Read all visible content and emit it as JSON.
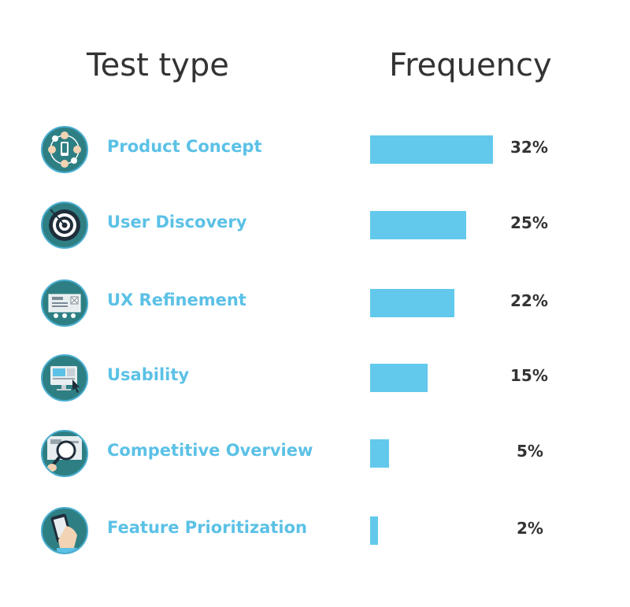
{
  "header": {
    "test_type": "Test type",
    "frequency": "Frequency"
  },
  "chart_data": {
    "type": "bar",
    "orientation": "horizontal",
    "categories": [
      "Product Concept",
      "User Discovery",
      "UX Refinement",
      "Usability",
      "Competitive Overview",
      "Feature Prioritization"
    ],
    "values": [
      32,
      25,
      22,
      15,
      5,
      2
    ],
    "value_labels": [
      "32%",
      "25%",
      "22%",
      "15%",
      "5%",
      "2%"
    ],
    "icons": [
      "people-network-icon",
      "target-icon",
      "wireframe-icon",
      "monitor-cursor-icon",
      "magnifying-glass-icon",
      "hand-phone-icon"
    ],
    "grid": false,
    "colors": {
      "bar": "#62c9ec",
      "label": "#5bc1e6",
      "icon_bg": "#2e7f83",
      "text": "#333333"
    }
  }
}
